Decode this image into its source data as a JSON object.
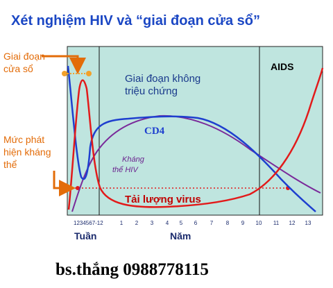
{
  "title": "Xét nghiệm  HIV và “giai đoạn cửa sổ”",
  "labels": {
    "window_period_line1": "Giai đoạn",
    "window_period_line2": "cửa sổ",
    "detection_line1": "Mức phát",
    "detection_line2": "hiện kháng",
    "detection_line3": "thể",
    "asymptomatic_line1": "Giai đoạn không",
    "asymptomatic_line2": "triệu chứng",
    "aids": "AIDS",
    "cd4": "CD4",
    "antibody_line1": "Kháng",
    "antibody_line2": "thể HIV",
    "viral_load": "Tải lượng virus"
  },
  "axis": {
    "week_ticks": "1234567-12",
    "year_ticks": [
      "1",
      "2",
      "3",
      "4",
      "5",
      "6",
      "7",
      "8",
      "9",
      "10",
      "11",
      "12",
      "13"
    ],
    "weeks_label": "Tuần",
    "years_label": "Năm"
  },
  "footer": "bs.thắng 0988778115",
  "colors": {
    "plot_bg": "#bfe5df",
    "cd4": "#1e3fcf",
    "antibody": "#7a2a9a",
    "viral_load": "#e21a1a",
    "annotation": "#e36c09",
    "title": "#1b47c4"
  }
}
